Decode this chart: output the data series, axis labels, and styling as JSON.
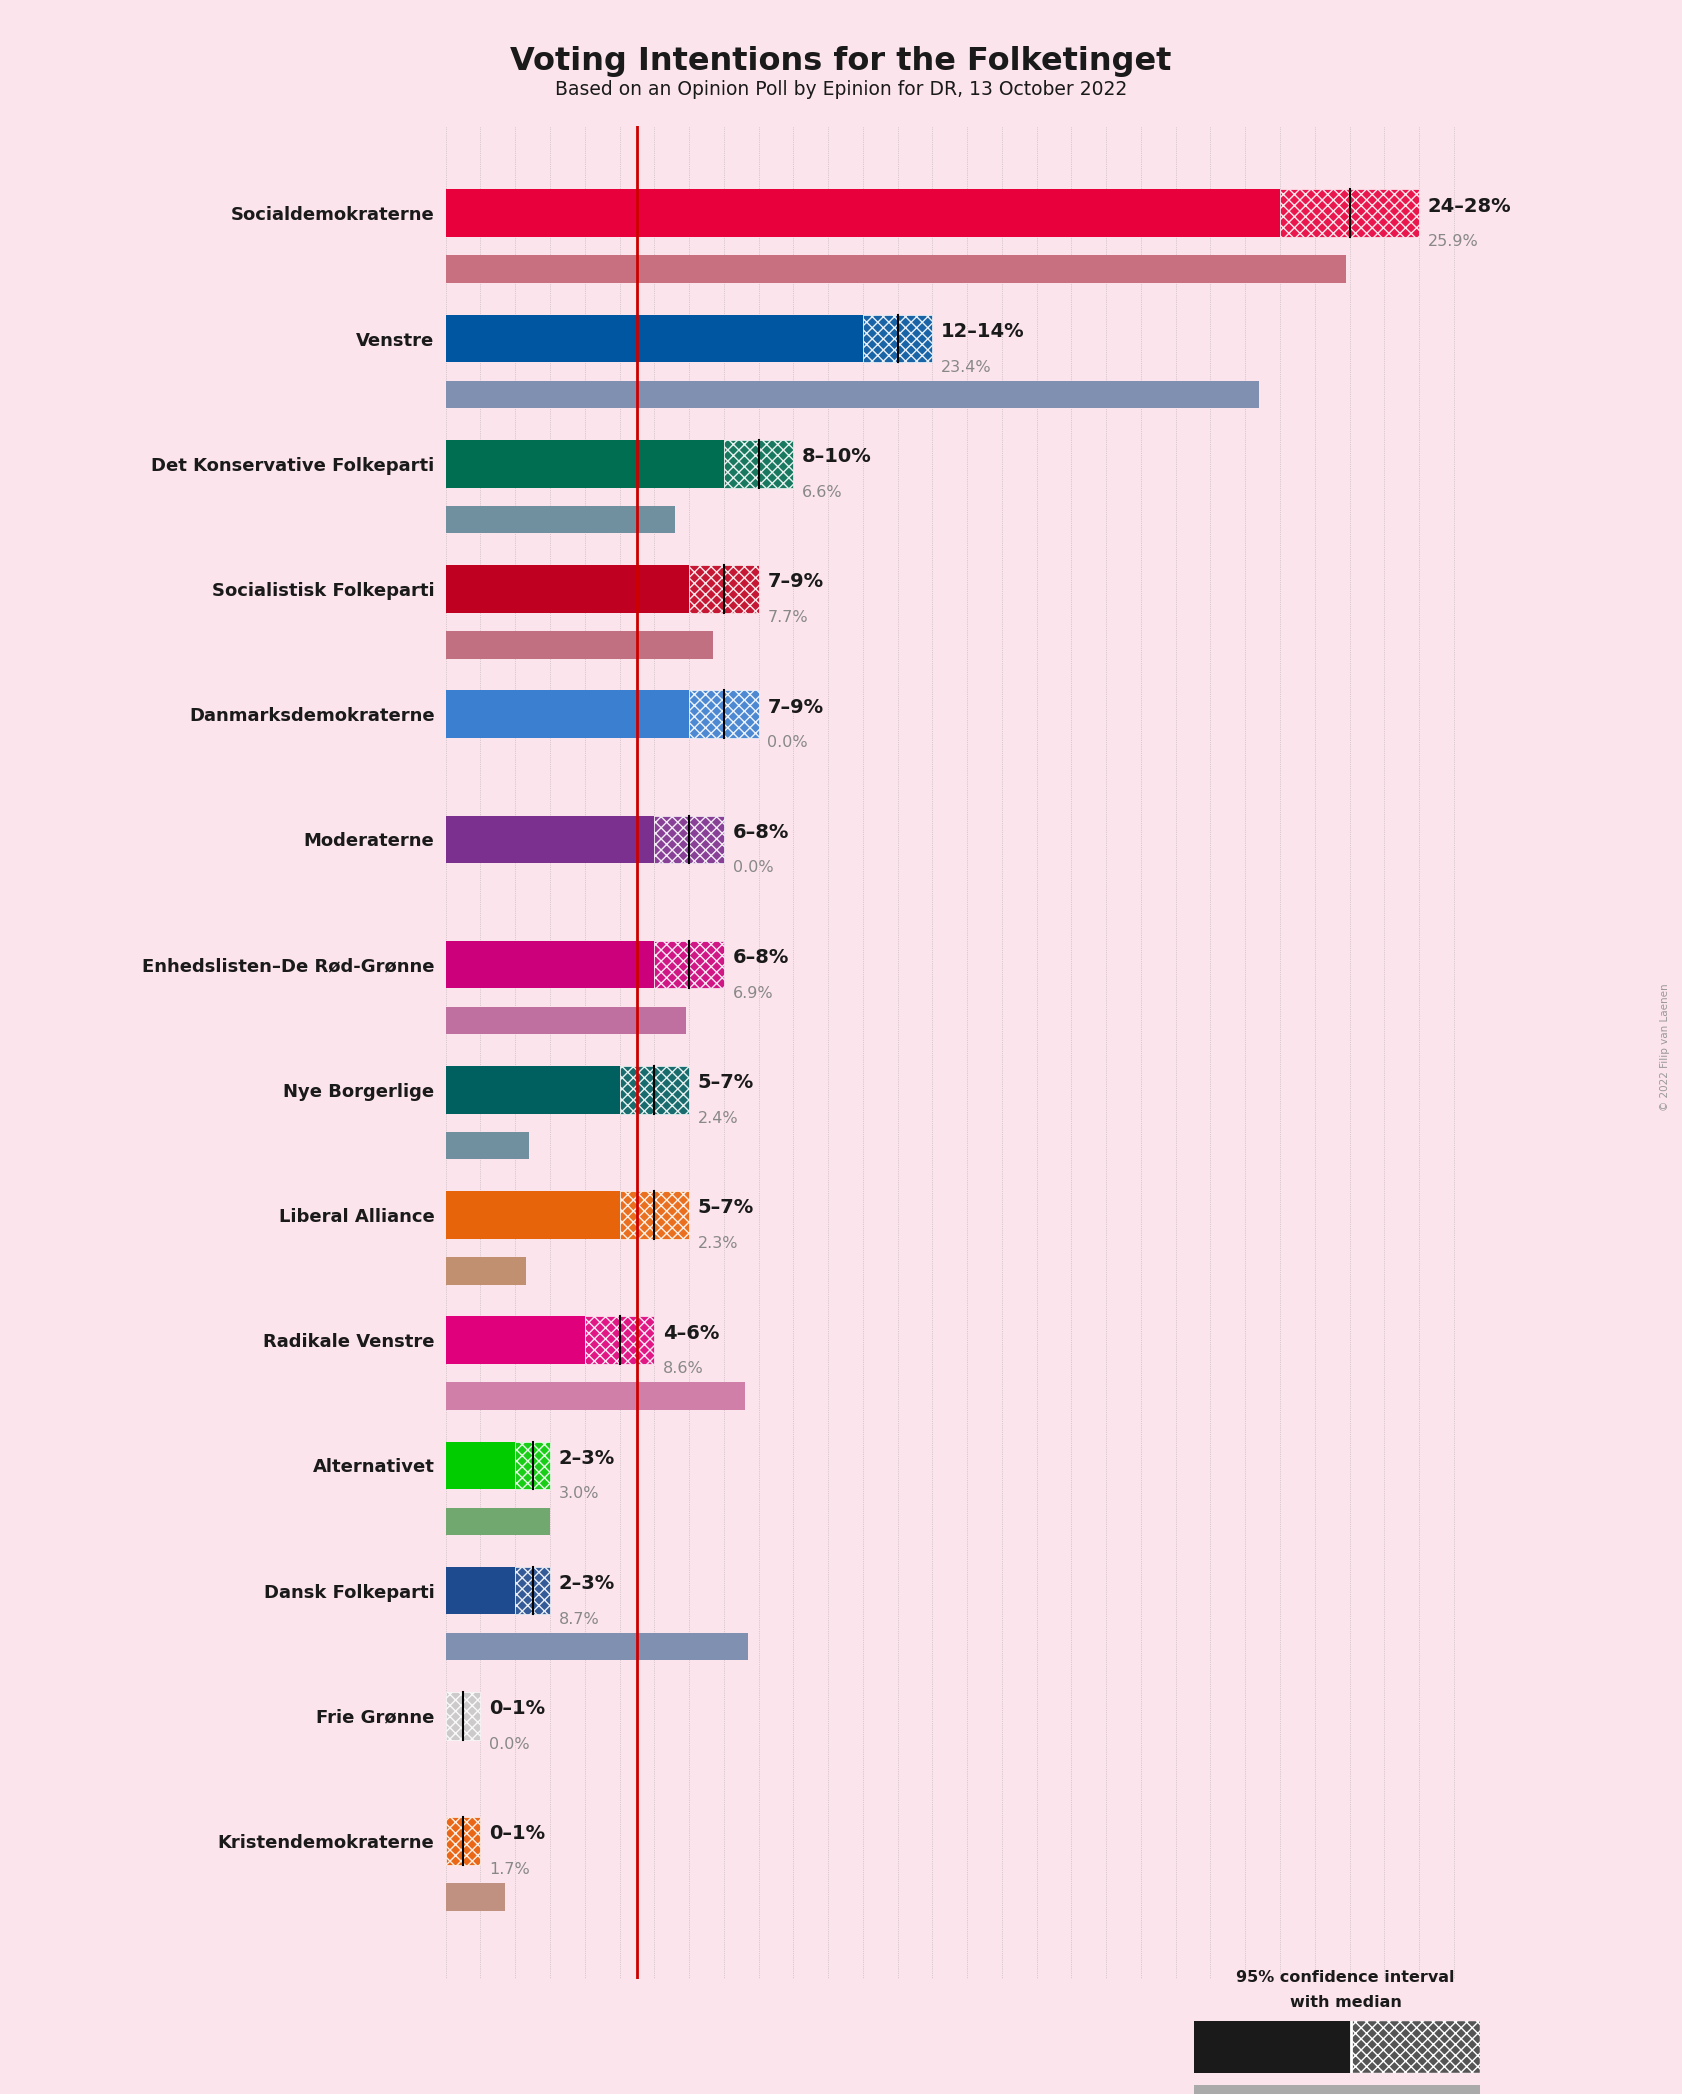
{
  "title": "Voting Intentions for the Folketinget",
  "subtitle": "Based on an Opinion Poll by Epinion for DR, 13 October 2022",
  "copyright": "© 2022 Filip van Laenen",
  "background_color": "#fce4ec",
  "parties": [
    {
      "name": "Socialdemokraterne",
      "ci_low": 24,
      "ci_high": 28,
      "median": 26.0,
      "last": 25.9,
      "color": "#e8003d",
      "last_color": "#c87080",
      "label": "24–28%",
      "last_label": "25.9%"
    },
    {
      "name": "Venstre",
      "ci_low": 12,
      "ci_high": 14,
      "median": 13.0,
      "last": 23.4,
      "color": "#0056a0",
      "last_color": "#8090b0",
      "label": "12–14%",
      "last_label": "23.4%"
    },
    {
      "name": "Det Konservative Folkeparti",
      "ci_low": 8,
      "ci_high": 10,
      "median": 9.0,
      "last": 6.6,
      "color": "#006e51",
      "last_color": "#7090a0",
      "label": "8–10%",
      "last_label": "6.6%"
    },
    {
      "name": "Socialistisk Folkeparti",
      "ci_low": 7,
      "ci_high": 9,
      "median": 8.0,
      "last": 7.7,
      "color": "#c00020",
      "last_color": "#c07080",
      "label": "7–9%",
      "last_label": "7.7%"
    },
    {
      "name": "Danmarksdemokraterne",
      "ci_low": 7,
      "ci_high": 9,
      "median": 8.0,
      "last": 0.0,
      "color": "#3a7fd0",
      "last_color": "#8090b0",
      "label": "7–9%",
      "last_label": "0.0%"
    },
    {
      "name": "Moderaterne",
      "ci_low": 6,
      "ci_high": 8,
      "median": 7.0,
      "last": 0.0,
      "color": "#7b2f8e",
      "last_color": "#907090",
      "label": "6–8%",
      "last_label": "0.0%"
    },
    {
      "name": "Enhedslisten–De Rød-Grønne",
      "ci_low": 6,
      "ci_high": 8,
      "median": 7.0,
      "last": 6.9,
      "color": "#cc007a",
      "last_color": "#c070a0",
      "label": "6–8%",
      "last_label": "6.9%"
    },
    {
      "name": "Nye Borgerlige",
      "ci_low": 5,
      "ci_high": 7,
      "median": 6.0,
      "last": 2.4,
      "color": "#005f5f",
      "last_color": "#7090a0",
      "label": "5–7%",
      "last_label": "2.4%"
    },
    {
      "name": "Liberal Alliance",
      "ci_low": 5,
      "ci_high": 7,
      "median": 6.0,
      "last": 2.3,
      "color": "#e8640a",
      "last_color": "#c09070",
      "label": "5–7%",
      "last_label": "2.3%"
    },
    {
      "name": "Radikale Venstre",
      "ci_low": 4,
      "ci_high": 6,
      "median": 5.0,
      "last": 8.6,
      "color": "#e0007b",
      "last_color": "#d080a8",
      "label": "4–6%",
      "last_label": "8.6%"
    },
    {
      "name": "Alternativet",
      "ci_low": 2,
      "ci_high": 3,
      "median": 2.5,
      "last": 3.0,
      "color": "#00cc00",
      "last_color": "#70a870",
      "label": "2–3%",
      "last_label": "3.0%"
    },
    {
      "name": "Dansk Folkeparti",
      "ci_low": 2,
      "ci_high": 3,
      "median": 2.5,
      "last": 8.7,
      "color": "#1e4b8f",
      "last_color": "#8090b0",
      "label": "2–3%",
      "last_label": "8.7%"
    },
    {
      "name": "Frie Grønne",
      "ci_low": 0,
      "ci_high": 1,
      "median": 0.5,
      "last": 0.0,
      "color": "#c8c8c8",
      "last_color": "#b0b0b0",
      "label": "0–1%",
      "last_label": "0.0%"
    },
    {
      "name": "Kristendemokraterne",
      "ci_low": 0,
      "ci_high": 1,
      "median": 0.5,
      "last": 1.7,
      "color": "#e85a00",
      "last_color": "#c09080",
      "label": "0–1%",
      "last_label": "1.7%"
    }
  ],
  "x_max": 30,
  "bar_height": 0.38,
  "last_bar_height": 0.22,
  "red_line_x": 5.5
}
